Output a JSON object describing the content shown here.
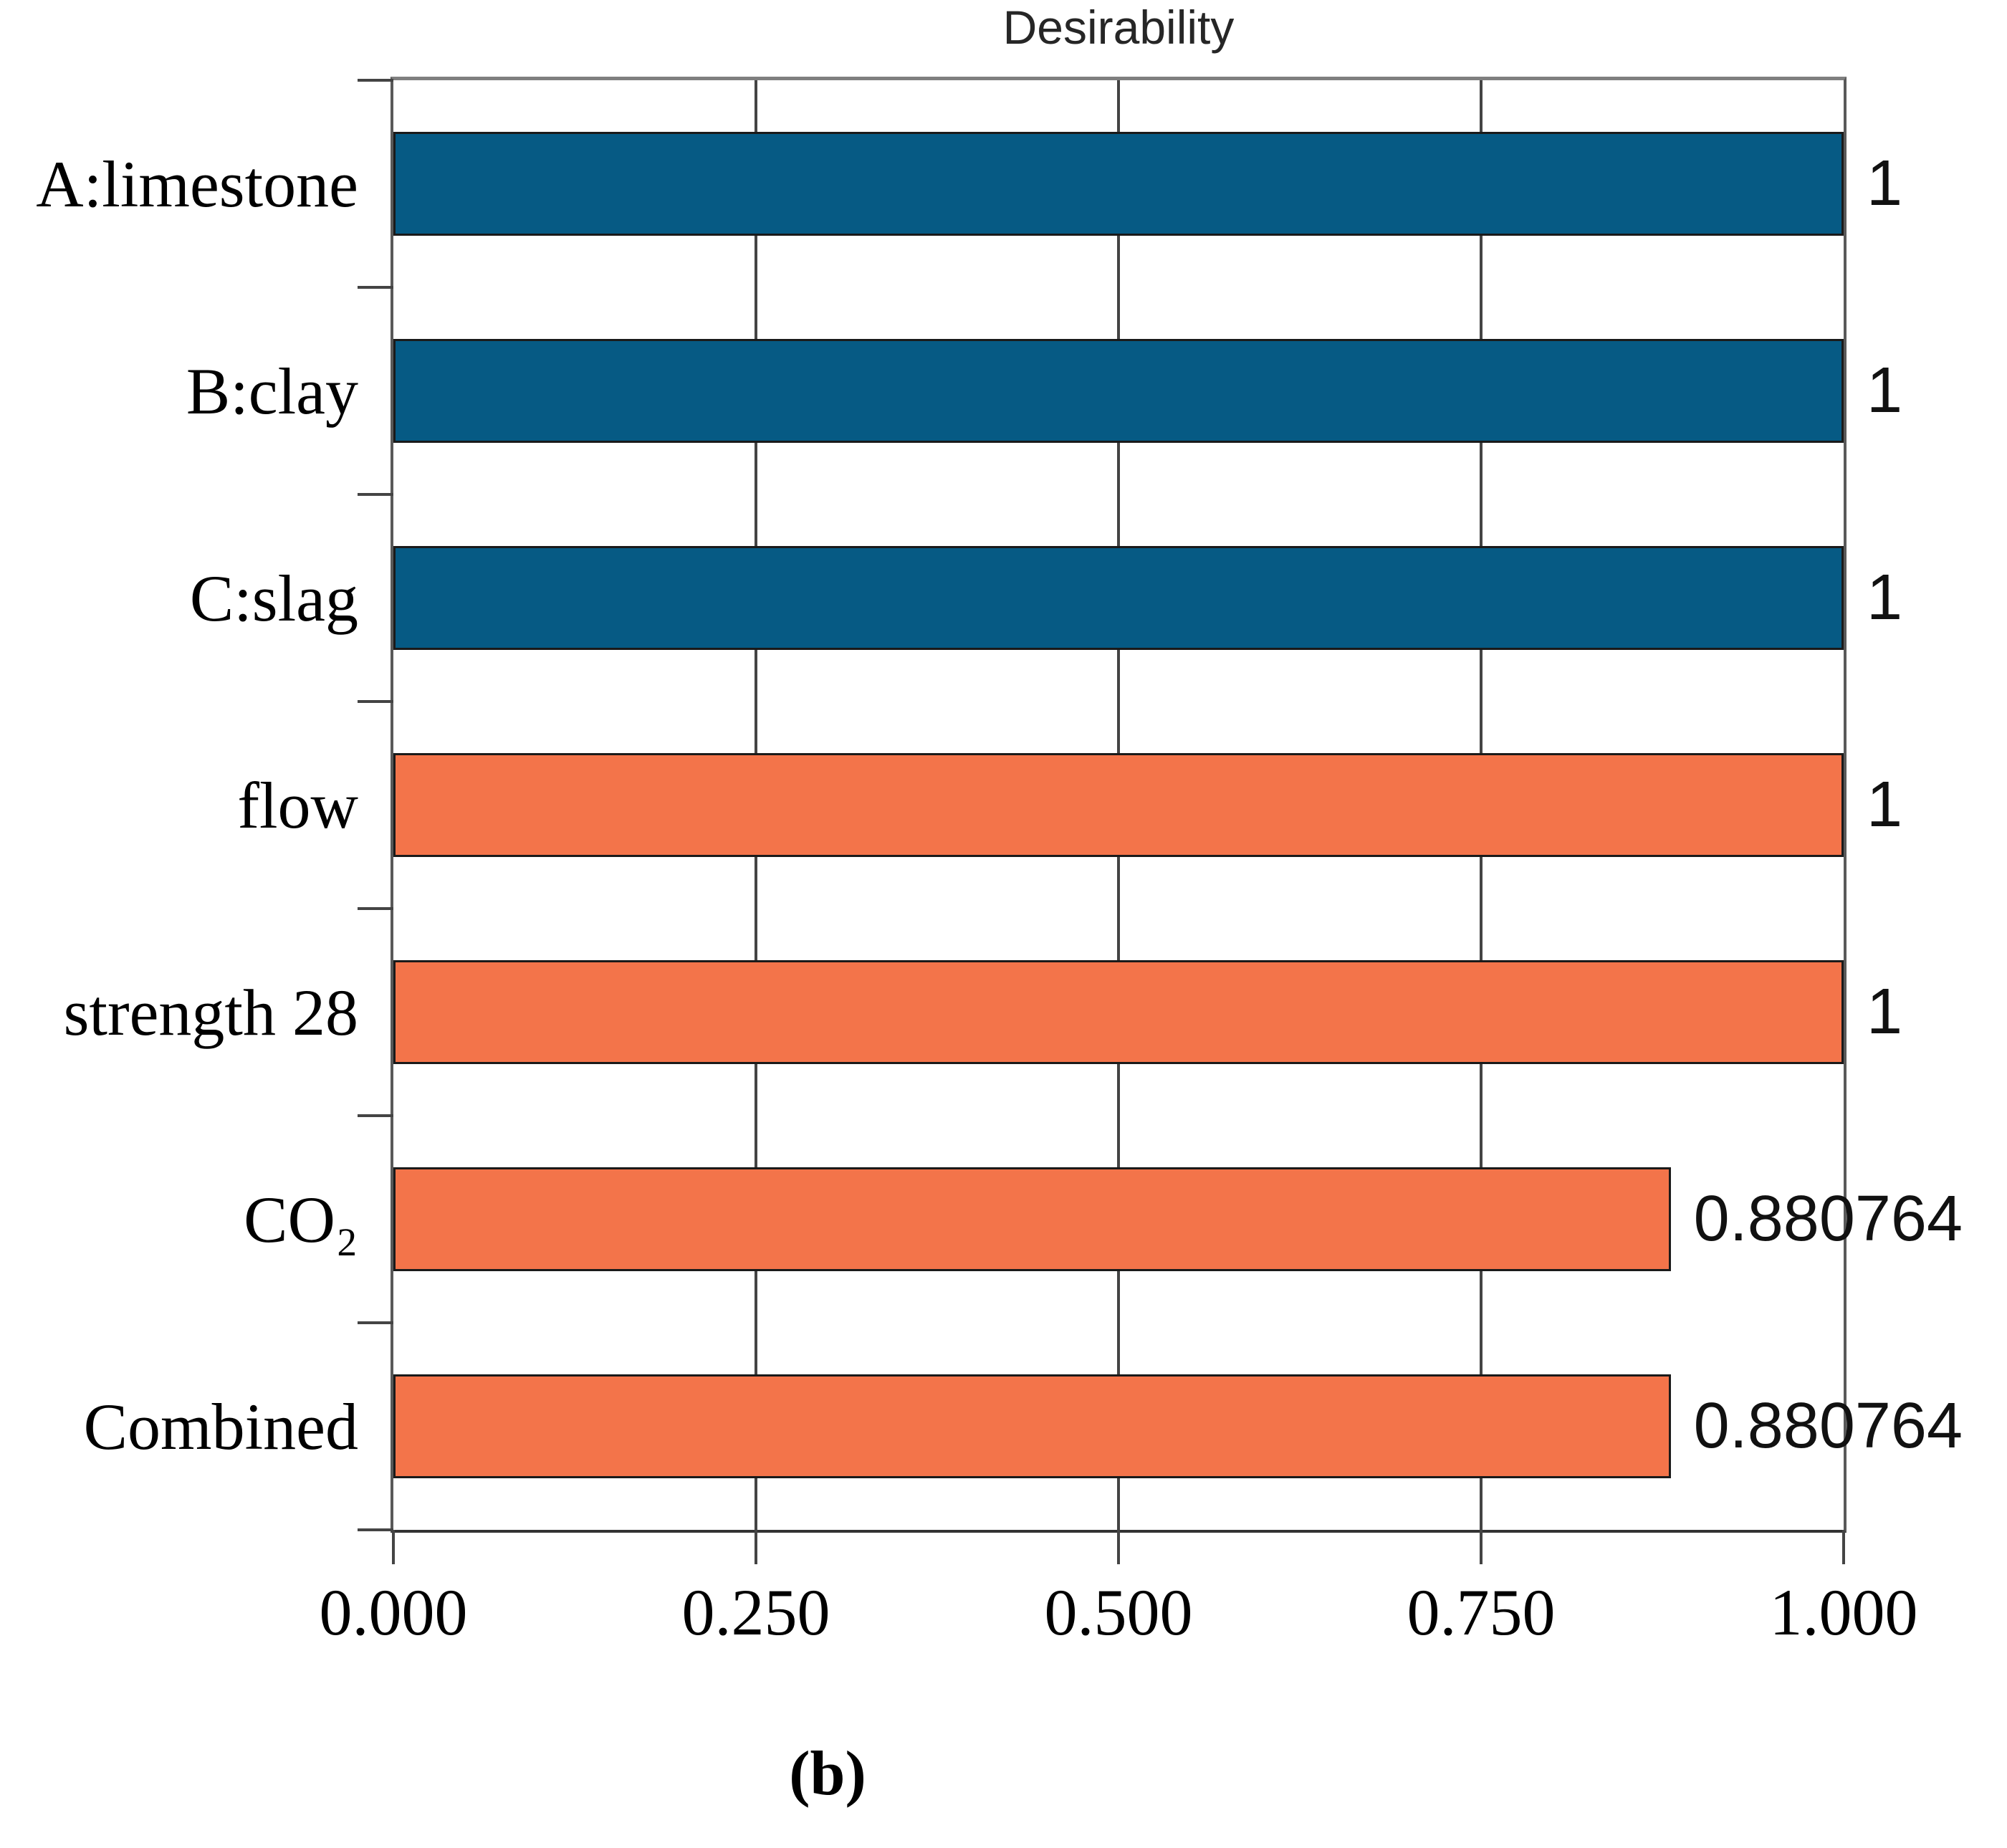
{
  "chart_data": {
    "type": "bar",
    "orientation": "horizontal",
    "title": "Desirability",
    "categories": [
      "A:limestone",
      "B:clay",
      "C:slag",
      "flow",
      "strength 28",
      "CO₂",
      "Combined"
    ],
    "values": [
      1,
      1,
      1,
      1,
      1,
      0.880764,
      0.880764
    ],
    "value_labels": [
      "1",
      "1",
      "1",
      "1",
      "1",
      "0.880764",
      "0.880764"
    ],
    "bar_colors": [
      "#065a84",
      "#065a84",
      "#065a84",
      "#f3744a",
      "#f3744a",
      "#f3744a",
      "#f3744a"
    ],
    "xlim": [
      0,
      1
    ],
    "x_tick_labels": [
      "0.000",
      "0.250",
      "0.500",
      "0.750",
      "1.000"
    ],
    "x_tick_values": [
      0,
      0.25,
      0.5,
      0.75,
      1.0
    ],
    "gridline_values": [
      0.25,
      0.5,
      0.75
    ],
    "grid": "vertical",
    "legend": "none"
  },
  "caption": "(b)",
  "colors": {
    "factor_bar_blue": "#065a84",
    "response_bar_orange": "#f3744a",
    "bar_border": "#1a1a1a",
    "axis_frame": "#595959",
    "gridline": "#444444",
    "text": "#000000"
  }
}
